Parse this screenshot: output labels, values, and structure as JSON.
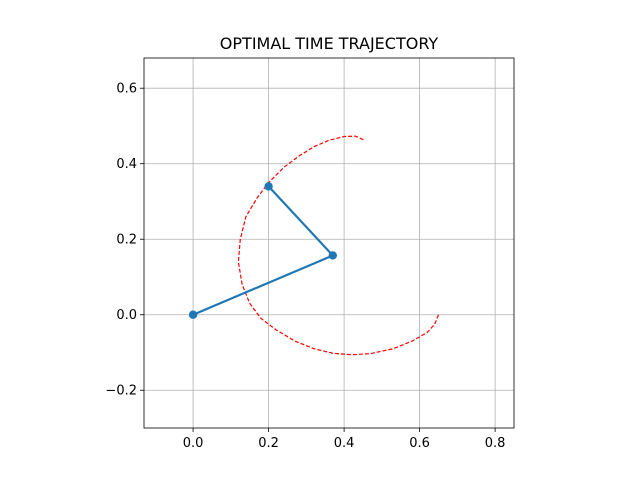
{
  "chart_data": {
    "type": "line",
    "title": "OPTIMAL TIME TRAJECTORY",
    "xlabel": "",
    "ylabel": "",
    "xlim": [
      -0.13,
      0.85
    ],
    "ylim": [
      -0.3,
      0.68
    ],
    "x_ticks": [
      0.0,
      0.2,
      0.4,
      0.6,
      0.8
    ],
    "x_tick_labels": [
      "0.0",
      "0.2",
      "0.4",
      "0.6",
      "0.8"
    ],
    "y_ticks": [
      -0.2,
      0.0,
      0.2,
      0.4,
      0.6
    ],
    "y_tick_labels": [
      "−0.2",
      "0.0",
      "0.2",
      "0.4",
      "0.6"
    ],
    "grid": true,
    "colors": {
      "arm": "#1f77b4",
      "trajectory": "#ff0000",
      "grid": "#b0b0b0"
    },
    "series": [
      {
        "style": "dashed",
        "color": "#ff0000",
        "points": [
          [
            0.65,
            0.0
          ],
          [
            0.64,
            -0.025
          ],
          [
            0.62,
            -0.047
          ],
          [
            0.58,
            -0.07
          ],
          [
            0.53,
            -0.09
          ],
          [
            0.47,
            -0.103
          ],
          [
            0.42,
            -0.106
          ],
          [
            0.37,
            -0.102
          ],
          [
            0.32,
            -0.09
          ],
          [
            0.27,
            -0.07
          ],
          [
            0.22,
            -0.04
          ],
          [
            0.18,
            -0.01
          ],
          [
            0.15,
            0.03
          ],
          [
            0.13,
            0.08
          ],
          [
            0.12,
            0.14
          ],
          [
            0.125,
            0.2
          ],
          [
            0.14,
            0.26
          ],
          [
            0.17,
            0.31
          ],
          [
            0.2,
            0.35
          ],
          [
            0.24,
            0.39
          ],
          [
            0.28,
            0.42
          ],
          [
            0.32,
            0.445
          ],
          [
            0.36,
            0.462
          ],
          [
            0.4,
            0.472
          ],
          [
            0.43,
            0.473
          ],
          [
            0.455,
            0.462
          ]
        ]
      },
      {
        "style": "solid",
        "color": "#1f77b4",
        "marker": "circle",
        "points": [
          [
            0.0,
            0.0
          ],
          [
            0.37,
            0.157
          ],
          [
            0.2,
            0.34
          ]
        ]
      }
    ]
  }
}
